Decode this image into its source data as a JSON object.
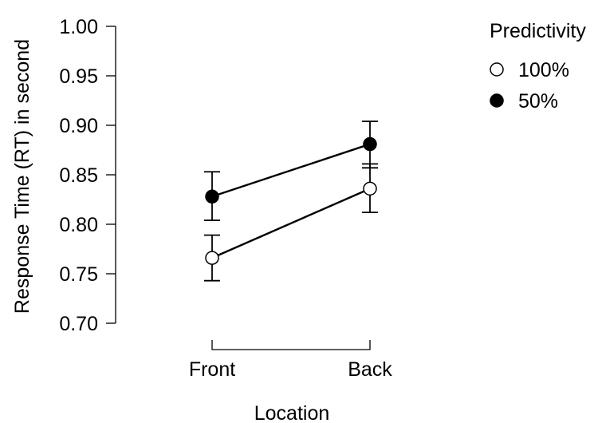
{
  "chart_data": {
    "type": "line",
    "title": "",
    "xlabel": "Location",
    "ylabel": "Response Time (RT) in second",
    "categories": [
      "Front",
      "Back"
    ],
    "ylim": [
      0.7,
      1.0
    ],
    "yticks": [
      "0.70",
      "0.75",
      "0.80",
      "0.85",
      "0.90",
      "0.95",
      "1.00"
    ],
    "grid": false,
    "legend": {
      "title": "Predictivity",
      "placement": "top-right"
    },
    "series": [
      {
        "name": "100%",
        "marker": "open-circle",
        "values": [
          0.766,
          0.836
        ],
        "error_low": [
          0.743,
          0.812
        ],
        "error_high": [
          0.789,
          0.861
        ]
      },
      {
        "name": "50%",
        "marker": "filled-circle",
        "values": [
          0.828,
          0.881
        ],
        "error_low": [
          0.804,
          0.857
        ],
        "error_high": [
          0.853,
          0.904
        ]
      }
    ],
    "colors": {
      "line": "#000000",
      "open_fill": "#ffffff",
      "filled_fill": "#000000"
    }
  }
}
